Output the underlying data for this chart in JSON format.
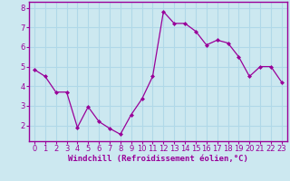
{
  "x": [
    0,
    1,
    2,
    3,
    4,
    5,
    6,
    7,
    8,
    9,
    10,
    11,
    12,
    13,
    14,
    15,
    16,
    17,
    18,
    19,
    20,
    21,
    22,
    23
  ],
  "y": [
    4.85,
    4.5,
    3.7,
    3.7,
    1.9,
    2.95,
    2.2,
    1.85,
    1.55,
    2.55,
    3.35,
    4.5,
    7.8,
    7.2,
    7.2,
    6.8,
    6.1,
    6.35,
    6.2,
    5.5,
    4.5,
    5.0,
    5.0,
    4.2
  ],
  "line_color": "#990099",
  "marker": "D",
  "markersize": 2.0,
  "linewidth": 0.9,
  "xlabel": "Windchill (Refroidissement éolien,°C)",
  "ylim": [
    1.2,
    8.3
  ],
  "xlim": [
    -0.5,
    23.5
  ],
  "yticks": [
    2,
    3,
    4,
    5,
    6,
    7,
    8
  ],
  "xticks": [
    0,
    1,
    2,
    3,
    4,
    5,
    6,
    7,
    8,
    9,
    10,
    11,
    12,
    13,
    14,
    15,
    16,
    17,
    18,
    19,
    20,
    21,
    22,
    23
  ],
  "bg_color": "#cce8f0",
  "grid_color": "#b0d8e8",
  "spine_color": "#990099",
  "xlabel_fontsize": 6.5,
  "tick_fontsize": 6.0,
  "fig_width": 3.2,
  "fig_height": 2.0,
  "dpi": 100
}
